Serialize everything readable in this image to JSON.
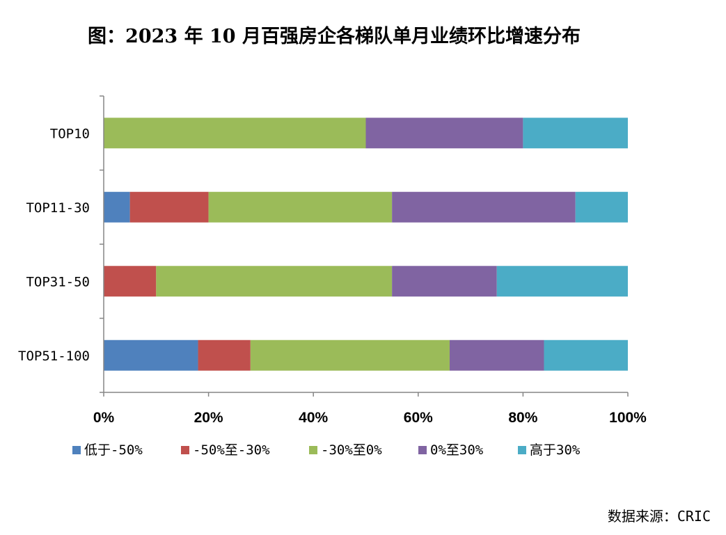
{
  "chart_data": {
    "type": "bar",
    "orientation": "horizontal-stacked-percent",
    "title": "图：2023 年 10 月百强房企各梯队单月业绩环比增速分布",
    "categories": [
      "TOP10",
      "TOP11-30",
      "TOP31-50",
      "TOP51-100"
    ],
    "series": [
      {
        "name": "低于-50%",
        "color": "#4F81BD",
        "values": [
          0,
          5,
          0,
          18
        ]
      },
      {
        "name": "-50%至-30%",
        "color": "#C0504D",
        "values": [
          0,
          15,
          10,
          10
        ]
      },
      {
        "name": "-30%至0%",
        "color": "#9BBB59",
        "values": [
          50,
          35,
          45,
          38
        ]
      },
      {
        "name": "0%至30%",
        "color": "#8064A2",
        "values": [
          30,
          35,
          20,
          18
        ]
      },
      {
        "name": "高于30%",
        "color": "#4BACC6",
        "values": [
          20,
          10,
          25,
          16
        ]
      }
    ],
    "xlim": [
      0,
      100
    ],
    "xticks": [
      "0%",
      "20%",
      "40%",
      "60%",
      "80%",
      "100%"
    ],
    "grid": false,
    "legend_position": "bottom"
  },
  "source_text": "数据来源：CRIC"
}
